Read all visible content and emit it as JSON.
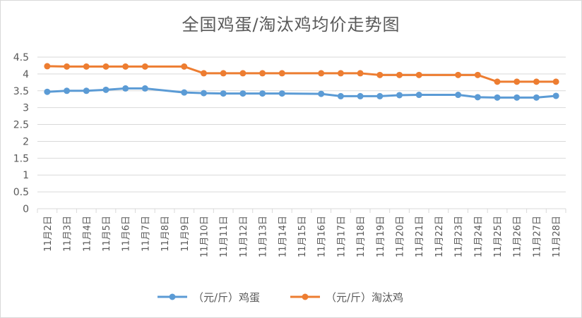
{
  "chart_data": {
    "type": "line",
    "title": "全国鸡蛋/淘汰鸡均价走势图",
    "xlabel": "",
    "ylabel": "",
    "categories": [
      "11月2日",
      "11月3日",
      "11月4日",
      "11月5日",
      "11月6日",
      "11月7日",
      "11月8日",
      "11月9日",
      "11月10日",
      "11月11日",
      "11月12日",
      "11月13日",
      "11月14日",
      "11月15日",
      "11月16日",
      "11月17日",
      "11月18日",
      "11月19日",
      "11月20日",
      "11月21日",
      "11月22日",
      "11月23日",
      "11月24日",
      "11月25日",
      "11月26日",
      "11月27日",
      "11月28日"
    ],
    "y_ticks": [
      "0",
      "0.5",
      "1",
      "1.5",
      "2",
      "2.5",
      "3",
      "3.5",
      "4",
      "4.5"
    ],
    "ylim": [
      0,
      4.5
    ],
    "grid": true,
    "legend_position": "bottom",
    "series": [
      {
        "name": "（元/斤）鸡蛋",
        "color": "#5b9bd5",
        "points": [
          {
            "x": "11月2日",
            "y": 3.47
          },
          {
            "x": "11月3日",
            "y": 3.5
          },
          {
            "x": "11月4日",
            "y": 3.5
          },
          {
            "x": "11月5日",
            "y": 3.53
          },
          {
            "x": "11月6日",
            "y": 3.57
          },
          {
            "x": "11月7日",
            "y": 3.57
          },
          {
            "x": "11月9日",
            "y": 3.45
          },
          {
            "x": "11月10日",
            "y": 3.43
          },
          {
            "x": "11月11日",
            "y": 3.42
          },
          {
            "x": "11月12日",
            "y": 3.42
          },
          {
            "x": "11月13日",
            "y": 3.42
          },
          {
            "x": "11月14日",
            "y": 3.42
          },
          {
            "x": "11月16日",
            "y": 3.41
          },
          {
            "x": "11月17日",
            "y": 3.34
          },
          {
            "x": "11月18日",
            "y": 3.34
          },
          {
            "x": "11月19日",
            "y": 3.34
          },
          {
            "x": "11月20日",
            "y": 3.37
          },
          {
            "x": "11月21日",
            "y": 3.38
          },
          {
            "x": "11月23日",
            "y": 3.38
          },
          {
            "x": "11月24日",
            "y": 3.31
          },
          {
            "x": "11月25日",
            "y": 3.3
          },
          {
            "x": "11月26日",
            "y": 3.3
          },
          {
            "x": "11月27日",
            "y": 3.3
          },
          {
            "x": "11月28日",
            "y": 3.35
          }
        ]
      },
      {
        "name": "（元/斤）淘汰鸡",
        "color": "#ed7d31",
        "points": [
          {
            "x": "11月2日",
            "y": 4.23
          },
          {
            "x": "11月3日",
            "y": 4.22
          },
          {
            "x": "11月4日",
            "y": 4.22
          },
          {
            "x": "11月5日",
            "y": 4.22
          },
          {
            "x": "11月6日",
            "y": 4.22
          },
          {
            "x": "11月7日",
            "y": 4.22
          },
          {
            "x": "11月9日",
            "y": 4.22
          },
          {
            "x": "11月10日",
            "y": 4.02
          },
          {
            "x": "11月11日",
            "y": 4.02
          },
          {
            "x": "11月12日",
            "y": 4.02
          },
          {
            "x": "11月13日",
            "y": 4.02
          },
          {
            "x": "11月14日",
            "y": 4.02
          },
          {
            "x": "11月16日",
            "y": 4.02
          },
          {
            "x": "11月17日",
            "y": 4.02
          },
          {
            "x": "11月18日",
            "y": 4.02
          },
          {
            "x": "11月19日",
            "y": 3.97
          },
          {
            "x": "11月20日",
            "y": 3.97
          },
          {
            "x": "11月21日",
            "y": 3.97
          },
          {
            "x": "11月23日",
            "y": 3.97
          },
          {
            "x": "11月24日",
            "y": 3.97
          },
          {
            "x": "11月25日",
            "y": 3.77
          },
          {
            "x": "11月26日",
            "y": 3.77
          },
          {
            "x": "11月27日",
            "y": 3.77
          },
          {
            "x": "11月28日",
            "y": 3.77
          }
        ]
      }
    ]
  }
}
